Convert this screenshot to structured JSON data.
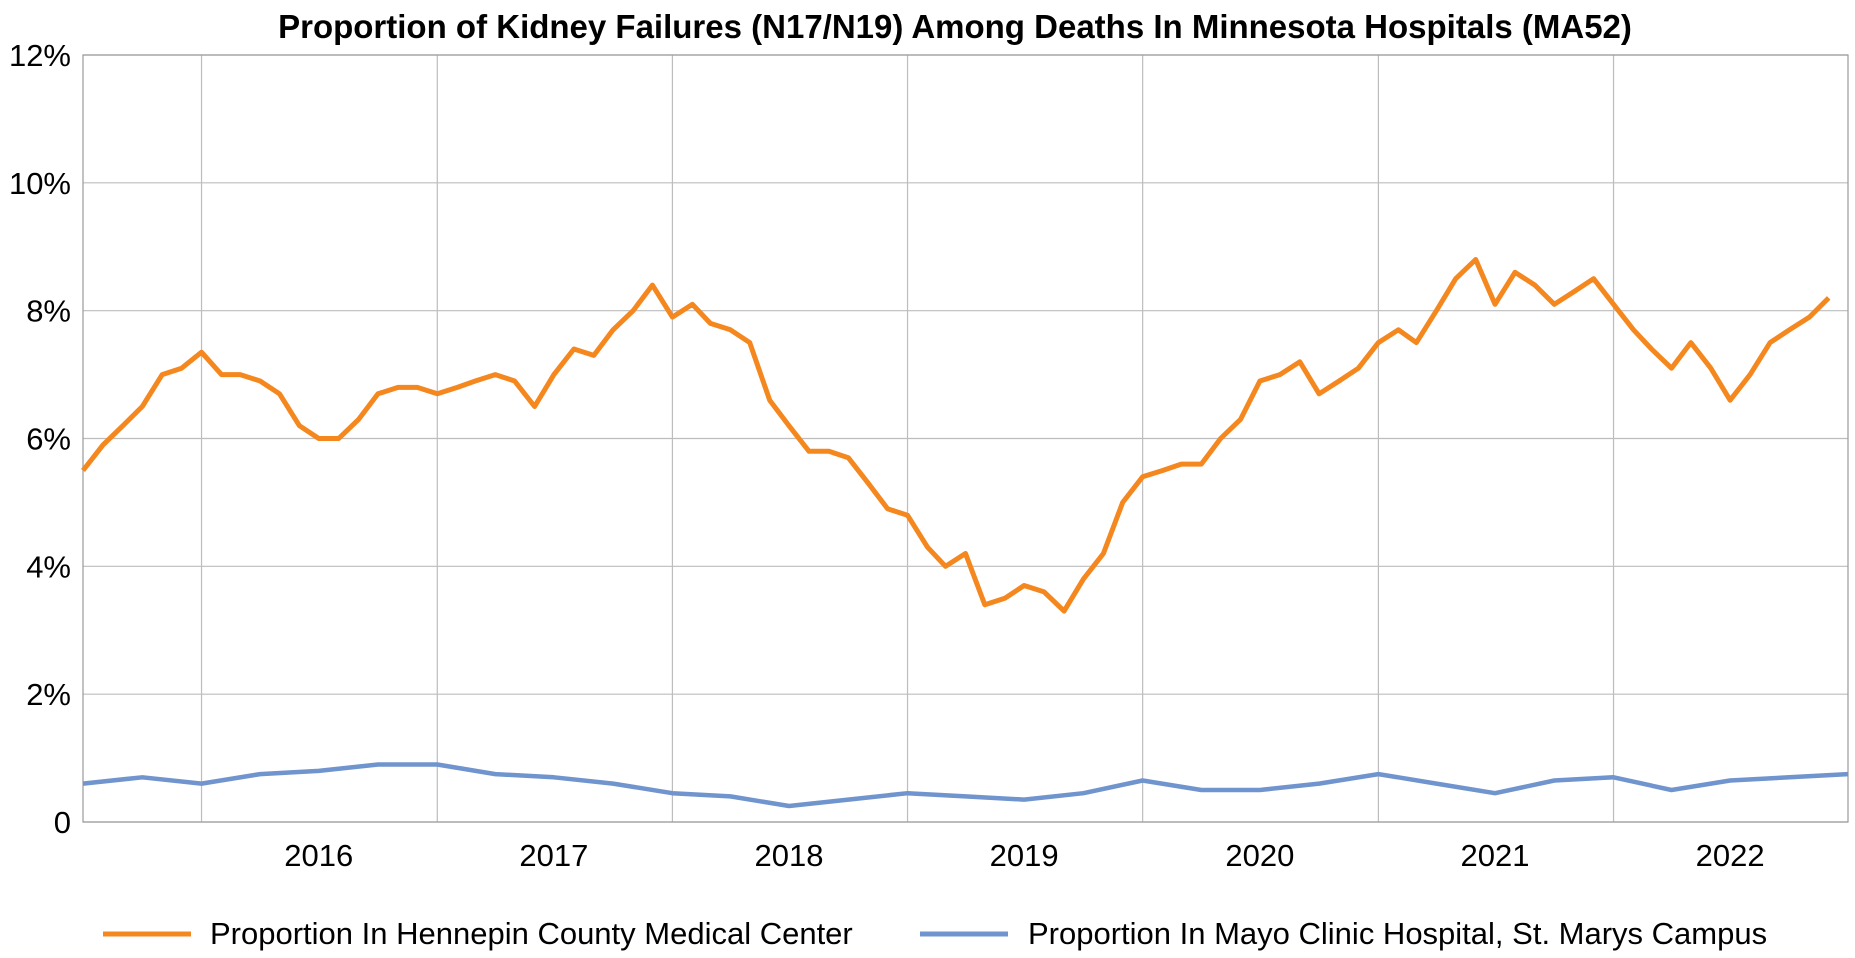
{
  "chart_data": {
    "type": "line",
    "title": "Proportion of Kidney Failures (N17/N19) Among Deaths In Minnesota Hospitals (MA52)",
    "xlabel": "",
    "ylabel": "",
    "x_ticks": [
      "2016",
      "2017",
      "2018",
      "2019",
      "2020",
      "2021",
      "2022"
    ],
    "y_ticks": [
      "0",
      "2%",
      "4%",
      "6%",
      "8%",
      "10%",
      "12%"
    ],
    "xlim": [
      "2015-07-01",
      "2022-12-31"
    ],
    "ylim": [
      0,
      12
    ],
    "grid": true,
    "legend_position": "bottom",
    "series": [
      {
        "name": "Proportion In Hennepin County Medical Center",
        "color": "#f5871f",
        "points": [
          [
            "2015-07-01",
            5.5
          ],
          [
            "2015-08-01",
            5.9
          ],
          [
            "2015-09-01",
            6.2
          ],
          [
            "2015-10-01",
            6.5
          ],
          [
            "2015-11-01",
            7.0
          ],
          [
            "2015-12-01",
            7.1
          ],
          [
            "2016-01-01",
            7.35
          ],
          [
            "2016-02-01",
            7.0
          ],
          [
            "2016-03-01",
            7.0
          ],
          [
            "2016-04-01",
            6.9
          ],
          [
            "2016-05-01",
            6.7
          ],
          [
            "2016-06-01",
            6.2
          ],
          [
            "2016-07-01",
            6.0
          ],
          [
            "2016-08-01",
            6.0
          ],
          [
            "2016-09-01",
            6.3
          ],
          [
            "2016-10-01",
            6.7
          ],
          [
            "2016-11-01",
            6.8
          ],
          [
            "2016-12-01",
            6.8
          ],
          [
            "2017-01-01",
            6.7
          ],
          [
            "2017-02-01",
            6.8
          ],
          [
            "2017-03-01",
            6.9
          ],
          [
            "2017-04-01",
            7.0
          ],
          [
            "2017-05-01",
            6.9
          ],
          [
            "2017-06-01",
            6.5
          ],
          [
            "2017-07-01",
            7.0
          ],
          [
            "2017-08-01",
            7.4
          ],
          [
            "2017-09-01",
            7.3
          ],
          [
            "2017-10-01",
            7.7
          ],
          [
            "2017-11-01",
            8.0
          ],
          [
            "2017-12-01",
            8.4
          ],
          [
            "2018-01-01",
            7.9
          ],
          [
            "2018-02-01",
            8.1
          ],
          [
            "2018-03-01",
            7.8
          ],
          [
            "2018-04-01",
            7.7
          ],
          [
            "2018-05-01",
            7.5
          ],
          [
            "2018-06-01",
            6.6
          ],
          [
            "2018-07-01",
            6.2
          ],
          [
            "2018-08-01",
            5.8
          ],
          [
            "2018-09-01",
            5.8
          ],
          [
            "2018-10-01",
            5.7
          ],
          [
            "2018-11-01",
            5.3
          ],
          [
            "2018-12-01",
            4.9
          ],
          [
            "2019-01-01",
            4.8
          ],
          [
            "2019-02-01",
            4.3
          ],
          [
            "2019-03-01",
            4.0
          ],
          [
            "2019-04-01",
            4.2
          ],
          [
            "2019-05-01",
            3.4
          ],
          [
            "2019-06-01",
            3.5
          ],
          [
            "2019-07-01",
            3.7
          ],
          [
            "2019-08-01",
            3.6
          ],
          [
            "2019-09-01",
            3.3
          ],
          [
            "2019-10-01",
            3.8
          ],
          [
            "2019-11-01",
            4.2
          ],
          [
            "2019-12-01",
            5.0
          ],
          [
            "2020-01-01",
            5.4
          ],
          [
            "2020-02-01",
            5.5
          ],
          [
            "2020-03-01",
            5.6
          ],
          [
            "2020-04-01",
            5.6
          ],
          [
            "2020-05-01",
            6.0
          ],
          [
            "2020-06-01",
            6.3
          ],
          [
            "2020-07-01",
            6.9
          ],
          [
            "2020-08-01",
            7.0
          ],
          [
            "2020-09-01",
            7.2
          ],
          [
            "2020-10-01",
            6.7
          ],
          [
            "2020-11-01",
            6.9
          ],
          [
            "2020-12-01",
            7.1
          ],
          [
            "2021-01-01",
            7.5
          ],
          [
            "2021-02-01",
            7.7
          ],
          [
            "2021-03-01",
            7.5
          ],
          [
            "2021-04-01",
            8.0
          ],
          [
            "2021-05-01",
            8.5
          ],
          [
            "2021-06-01",
            8.8
          ],
          [
            "2021-07-01",
            8.1
          ],
          [
            "2021-08-01",
            8.6
          ],
          [
            "2021-09-01",
            8.4
          ],
          [
            "2021-10-01",
            8.1
          ],
          [
            "2021-11-01",
            8.3
          ],
          [
            "2021-12-01",
            8.5
          ],
          [
            "2022-01-01",
            8.1
          ],
          [
            "2022-02-01",
            7.7
          ],
          [
            "2022-03-01",
            7.4
          ],
          [
            "2022-04-01",
            7.1
          ],
          [
            "2022-05-01",
            7.5
          ],
          [
            "2022-06-01",
            7.1
          ],
          [
            "2022-07-01",
            6.6
          ],
          [
            "2022-08-01",
            7.0
          ],
          [
            "2022-09-01",
            7.5
          ],
          [
            "2022-10-01",
            7.7
          ],
          [
            "2022-11-01",
            7.9
          ],
          [
            "2022-12-01",
            8.2
          ]
        ]
      },
      {
        "name": "Proportion In Mayo Clinic Hospital, St. Marys Campus",
        "color": "#7094cd",
        "points": [
          [
            "2015-07-01",
            0.6
          ],
          [
            "2015-10-01",
            0.7
          ],
          [
            "2016-01-01",
            0.6
          ],
          [
            "2016-04-01",
            0.75
          ],
          [
            "2016-07-01",
            0.8
          ],
          [
            "2016-10-01",
            0.9
          ],
          [
            "2017-01-01",
            0.9
          ],
          [
            "2017-04-01",
            0.75
          ],
          [
            "2017-07-01",
            0.7
          ],
          [
            "2017-10-01",
            0.6
          ],
          [
            "2018-01-01",
            0.45
          ],
          [
            "2018-04-01",
            0.4
          ],
          [
            "2018-07-01",
            0.25
          ],
          [
            "2018-10-01",
            0.35
          ],
          [
            "2019-01-01",
            0.45
          ],
          [
            "2019-04-01",
            0.4
          ],
          [
            "2019-07-01",
            0.35
          ],
          [
            "2019-10-01",
            0.45
          ],
          [
            "2020-01-01",
            0.65
          ],
          [
            "2020-04-01",
            0.5
          ],
          [
            "2020-07-01",
            0.5
          ],
          [
            "2020-10-01",
            0.6
          ],
          [
            "2021-01-01",
            0.75
          ],
          [
            "2021-04-01",
            0.6
          ],
          [
            "2021-07-01",
            0.45
          ],
          [
            "2021-10-01",
            0.65
          ],
          [
            "2022-01-01",
            0.7
          ],
          [
            "2022-04-01",
            0.5
          ],
          [
            "2022-07-01",
            0.65
          ],
          [
            "2022-10-01",
            0.7
          ],
          [
            "2022-12-31",
            0.75
          ]
        ]
      }
    ]
  }
}
